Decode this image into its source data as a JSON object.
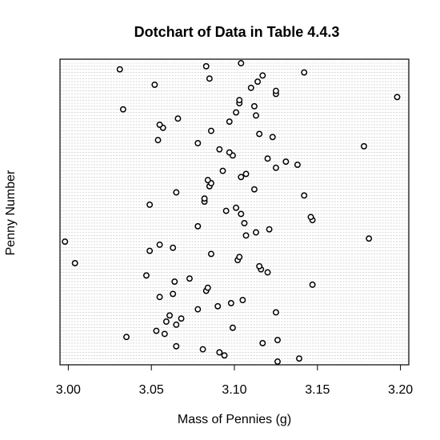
{
  "chart_data": {
    "type": "scatter",
    "title": "Dotchart of Data in Table 4.4.3",
    "xlabel": "Mass of Pennies (g)",
    "ylabel": "Penny Number",
    "xlim": [
      2.995,
      3.205
    ],
    "x_ticks": [
      "3.00",
      "3.05",
      "3.10",
      "3.15",
      "3.20"
    ],
    "grid": true,
    "legend": "none",
    "dot_color": "#000000",
    "grid_color": "#bdbdbd",
    "series": [
      {
        "values": [
          3.126,
          3.139,
          3.094,
          3.091,
          3.081,
          3.065,
          3.117,
          3.126,
          3.035,
          3.058,
          3.053,
          3.099,
          3.065,
          3.059,
          3.068,
          3.061,
          3.125,
          3.078,
          3.09,
          3.098,
          3.105,
          3.055,
          3.063,
          3.083,
          3.084,
          3.147,
          3.064,
          3.073,
          3.047,
          3.12,
          3.116,
          3.115,
          3.004,
          3.102,
          3.103,
          3.086,
          3.049,
          3.063,
          3.055,
          2.998,
          3.181,
          3.107,
          3.113,
          3.121,
          3.078,
          3.106,
          3.147,
          3.146,
          3.104,
          3.095,
          3.101,
          3.049,
          3.082,
          3.082,
          3.142,
          3.065,
          3.112,
          3.085,
          3.086,
          3.084,
          3.104,
          3.107,
          3.093,
          3.125,
          3.138,
          3.131,
          3.12,
          3.099,
          3.097,
          3.091,
          3.178,
          3.078,
          3.054,
          3.123,
          3.115,
          3.086,
          3.057,
          3.055,
          3.097,
          3.066,
          3.113,
          3.101,
          3.033,
          3.112,
          3.103,
          3.103,
          3.198,
          3.125,
          3.125,
          3.11,
          3.052,
          3.114,
          3.085,
          3.117,
          3.142,
          3.031,
          3.083,
          3.104
        ]
      }
    ]
  }
}
